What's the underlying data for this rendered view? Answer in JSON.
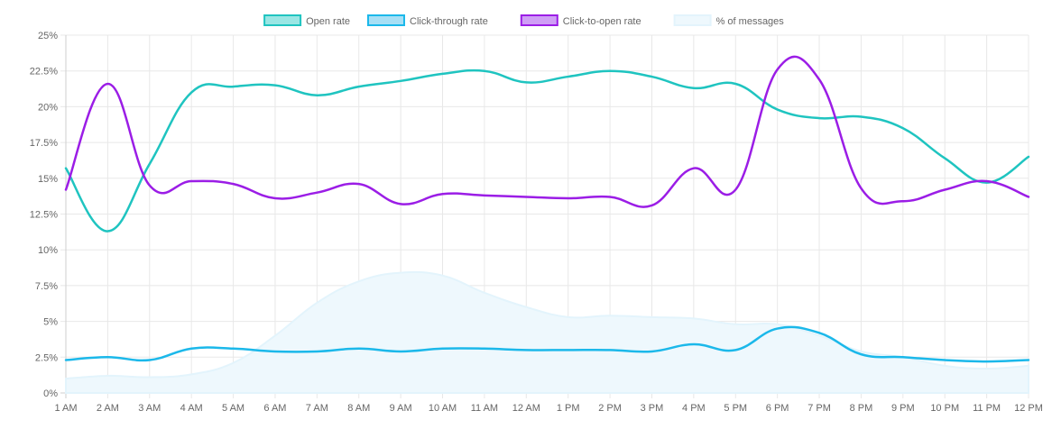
{
  "chart_data": {
    "type": "line",
    "categories": [
      "1 AM",
      "2 AM",
      "3 AM",
      "4 AM",
      "5 AM",
      "6 AM",
      "7 AM",
      "8 AM",
      "9 AM",
      "10 AM",
      "11 AM",
      "12 AM",
      "1 PM",
      "2 PM",
      "3 PM",
      "4 PM",
      "5 PM",
      "6 PM",
      "7 PM",
      "8 PM",
      "9 PM",
      "10 PM",
      "11 PM",
      "12 PM"
    ],
    "y_ticks": [
      "0%",
      "2.5%",
      "5%",
      "7.5%",
      "10%",
      "12.5%",
      "15%",
      "17.5%",
      "20%",
      "22.5%",
      "25%"
    ],
    "ylim": [
      0,
      25
    ],
    "y_step": 2.5,
    "grid": true,
    "legend_position": "top-center",
    "series": [
      {
        "name": "Open rate",
        "kind": "line",
        "color": "#1fc4c0",
        "fill": "#9ae6e4",
        "values": [
          15.7,
          11.3,
          16.0,
          21.0,
          21.4,
          21.5,
          20.8,
          21.4,
          21.8,
          22.3,
          22.5,
          21.7,
          22.1,
          22.5,
          22.1,
          21.3,
          21.6,
          19.8,
          19.2,
          19.3,
          18.5,
          16.4,
          14.7,
          16.5
        ]
      },
      {
        "name": "Click-through rate",
        "kind": "line",
        "color": "#1bb8ea",
        "fill": "#a7dff5",
        "values": [
          2.3,
          2.5,
          2.3,
          3.1,
          3.1,
          2.9,
          2.9,
          3.1,
          2.9,
          3.1,
          3.1,
          3.0,
          3.0,
          3.0,
          2.9,
          3.4,
          3.0,
          4.5,
          4.2,
          2.7,
          2.5,
          2.3,
          2.2,
          2.3
        ]
      },
      {
        "name": "Click-to-open rate",
        "kind": "line",
        "color": "#9b1de6",
        "fill": "#cf9ef5",
        "values": [
          14.2,
          21.6,
          14.5,
          14.8,
          14.6,
          13.6,
          14.0,
          14.6,
          13.2,
          13.9,
          13.8,
          13.7,
          13.6,
          13.7,
          13.1,
          15.7,
          14.2,
          22.6,
          21.9,
          14.3,
          13.4,
          14.2,
          14.8,
          13.7
        ]
      },
      {
        "name": "% of messages",
        "kind": "area",
        "color": "#e3f4fc",
        "fill": "#eef8fd",
        "values": [
          1.0,
          1.2,
          1.1,
          1.3,
          2.1,
          4.0,
          6.3,
          7.8,
          8.4,
          8.2,
          7.0,
          6.0,
          5.3,
          5.4,
          5.3,
          5.2,
          4.8,
          4.8,
          4.0,
          2.9,
          2.5,
          1.9,
          1.7,
          1.9
        ]
      }
    ]
  }
}
